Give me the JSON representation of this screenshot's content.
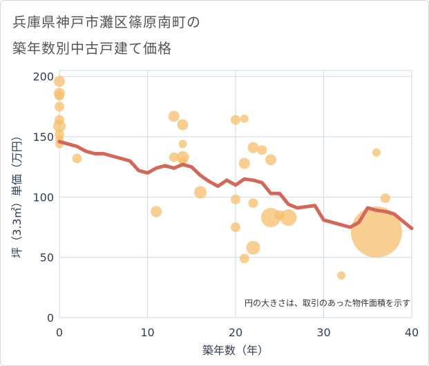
{
  "title_line1": "兵庫県神戸市灘区篠原南町の",
  "title_line2": "築年数別中古戸建て価格",
  "chart_data": {
    "type": "scatter",
    "xlabel": "築年数（年）",
    "ylabel": "坪（3.3㎡）単価（万円）",
    "xlim": [
      0,
      40
    ],
    "ylim": [
      0,
      205
    ],
    "x_ticks": [
      "0",
      "10",
      "20",
      "30",
      "40"
    ],
    "y_ticks": [
      "0",
      "50",
      "100",
      "150",
      "200"
    ],
    "note": "円の大きさは、取引のあった物件面積を示す",
    "colors": {
      "bubble": "#f5bf6b",
      "line": "#d2675a",
      "grid": "#cfd8e3"
    },
    "bubbles": [
      {
        "x": 0,
        "y": 196,
        "s": 8
      },
      {
        "x": 0,
        "y": 186,
        "s": 8
      },
      {
        "x": 0,
        "y": 184,
        "s": 7
      },
      {
        "x": 0,
        "y": 175,
        "s": 7
      },
      {
        "x": 0,
        "y": 164,
        "s": 7
      },
      {
        "x": 0,
        "y": 159,
        "s": 9
      },
      {
        "x": 0,
        "y": 152,
        "s": 7
      },
      {
        "x": 0,
        "y": 148,
        "s": 6
      },
      {
        "x": 0,
        "y": 144,
        "s": 6
      },
      {
        "x": 2,
        "y": 132,
        "s": 7
      },
      {
        "x": 11,
        "y": 88,
        "s": 8
      },
      {
        "x": 13,
        "y": 167,
        "s": 8
      },
      {
        "x": 13,
        "y": 133,
        "s": 7
      },
      {
        "x": 14,
        "y": 160,
        "s": 8
      },
      {
        "x": 14,
        "y": 144,
        "s": 6
      },
      {
        "x": 14,
        "y": 133,
        "s": 9
      },
      {
        "x": 14,
        "y": 130,
        "s": 6
      },
      {
        "x": 16,
        "y": 104,
        "s": 9
      },
      {
        "x": 20,
        "y": 164,
        "s": 7
      },
      {
        "x": 20,
        "y": 98,
        "s": 7
      },
      {
        "x": 20,
        "y": 75,
        "s": 7
      },
      {
        "x": 21,
        "y": 165,
        "s": 6
      },
      {
        "x": 21,
        "y": 128,
        "s": 8
      },
      {
        "x": 21,
        "y": 49,
        "s": 7
      },
      {
        "x": 22,
        "y": 141,
        "s": 8
      },
      {
        "x": 22,
        "y": 95,
        "s": 7
      },
      {
        "x": 22,
        "y": 58,
        "s": 10
      },
      {
        "x": 23,
        "y": 139,
        "s": 7
      },
      {
        "x": 24,
        "y": 131,
        "s": 8
      },
      {
        "x": 24,
        "y": 83,
        "s": 14
      },
      {
        "x": 25,
        "y": 85,
        "s": 7
      },
      {
        "x": 26,
        "y": 83,
        "s": 12
      },
      {
        "x": 32,
        "y": 35,
        "s": 6
      },
      {
        "x": 36,
        "y": 137,
        "s": 6
      },
      {
        "x": 36,
        "y": 71,
        "s": 37
      },
      {
        "x": 37,
        "y": 99,
        "s": 7
      }
    ],
    "trend": {
      "x": [
        0,
        1,
        2,
        3,
        4,
        5,
        6,
        7,
        8,
        9,
        10,
        11,
        12,
        13,
        14,
        15,
        16,
        17,
        18,
        19,
        20,
        21,
        22,
        23,
        24,
        25,
        26,
        27,
        28,
        29,
        30,
        31,
        32,
        33,
        34,
        35,
        36,
        37,
        38,
        39,
        40
      ],
      "y": [
        146,
        144,
        142,
        138,
        136,
        136,
        134,
        132,
        130,
        122,
        120,
        124,
        126,
        124,
        127,
        125,
        118,
        113,
        109,
        114,
        110,
        115,
        114,
        112,
        103,
        103,
        94,
        91,
        92,
        93,
        81,
        79,
        77,
        75,
        79,
        91,
        89,
        88,
        86,
        80,
        74
      ]
    }
  }
}
